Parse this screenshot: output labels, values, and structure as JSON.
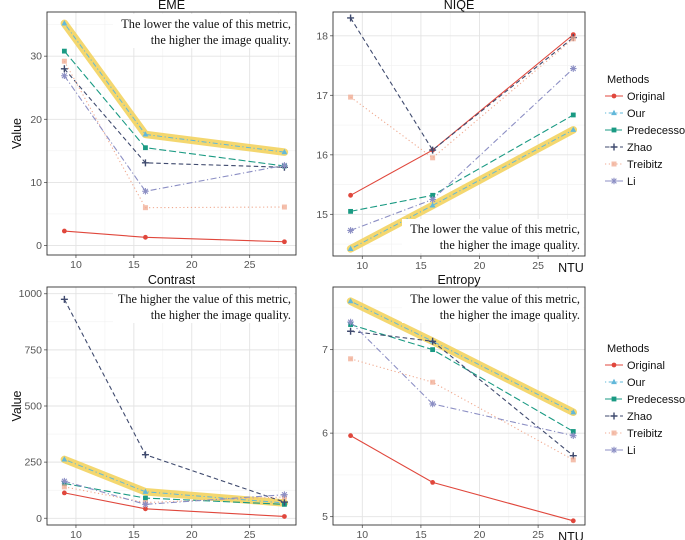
{
  "chart_data": [
    {
      "type": "line",
      "title": "EME",
      "annotation": [
        "The lower the value of this metric,",
        "the higher the image quality."
      ],
      "ylabel": "Value",
      "xlabel": "",
      "x": [
        9,
        16,
        28
      ],
      "xlim": [
        7.5,
        29
      ],
      "ylim": [
        -1.5,
        37
      ],
      "xticks": [
        10,
        15,
        20,
        25
      ],
      "yticks": [
        0,
        10,
        20,
        30
      ],
      "series": [
        {
          "name": "Original",
          "values": [
            2.3,
            1.3,
            0.6
          ]
        },
        {
          "name": "Our",
          "values": [
            35.2,
            17.6,
            14.8
          ]
        },
        {
          "name": "Predecessor",
          "values": [
            30.8,
            15.5,
            12.6
          ]
        },
        {
          "name": "Zhao",
          "values": [
            28.0,
            13.1,
            12.4
          ]
        },
        {
          "name": "Treibitz",
          "values": [
            29.2,
            6.0,
            6.1
          ]
        },
        {
          "name": "Li",
          "values": [
            26.9,
            8.6,
            12.7
          ]
        }
      ]
    },
    {
      "type": "line",
      "title": "NIQE",
      "annotation": [
        "The lower the value of this metric,",
        "the higher the image quality."
      ],
      "ylabel": "",
      "xlabel": "NTU",
      "x": [
        9,
        16,
        28
      ],
      "xlim": [
        7.5,
        29
      ],
      "ylim": [
        14.3,
        18.4
      ],
      "xticks": [
        10,
        15,
        20,
        25
      ],
      "yticks": [
        15,
        16,
        17,
        18
      ],
      "series": [
        {
          "name": "Original",
          "values": [
            15.32,
            16.08,
            18.02
          ]
        },
        {
          "name": "Our",
          "values": [
            14.42,
            15.15,
            16.42
          ]
        },
        {
          "name": "Predecessor",
          "values": [
            15.05,
            15.32,
            16.67
          ]
        },
        {
          "name": "Zhao",
          "values": [
            18.3,
            16.08,
            17.97
          ]
        },
        {
          "name": "Treibitz",
          "values": [
            16.97,
            15.95,
            17.95
          ]
        },
        {
          "name": "Li",
          "values": [
            14.73,
            15.25,
            17.45
          ]
        }
      ]
    },
    {
      "type": "line",
      "title": "Contrast",
      "annotation": [
        "The higher the value of this metric,",
        "the higher the image quality."
      ],
      "ylabel": "Value",
      "xlabel": "",
      "x": [
        9,
        16,
        28
      ],
      "xlim": [
        7.5,
        29
      ],
      "ylim": [
        -30,
        1030
      ],
      "xticks": [
        10,
        15,
        20,
        25
      ],
      "yticks": [
        0,
        250,
        500,
        750,
        1000
      ],
      "series": [
        {
          "name": "Original",
          "values": [
            113,
            42,
            8
          ]
        },
        {
          "name": "Our",
          "values": [
            262,
            118,
            68
          ]
        },
        {
          "name": "Predecessor",
          "values": [
            155,
            90,
            62
          ]
        },
        {
          "name": "Zhao",
          "values": [
            975,
            283,
            72
          ]
        },
        {
          "name": "Treibitz",
          "values": [
            140,
            70,
            95
          ]
        },
        {
          "name": "Li",
          "values": [
            165,
            62,
            105
          ]
        }
      ]
    },
    {
      "type": "line",
      "title": "Entropy",
      "annotation": [
        "The lower the value of this metric,",
        "the higher the image quality."
      ],
      "ylabel": "",
      "xlabel": "NTU",
      "x": [
        9,
        16,
        28
      ],
      "xlim": [
        7.5,
        29
      ],
      "ylim": [
        4.9,
        7.75
      ],
      "xticks": [
        10,
        15,
        20,
        25
      ],
      "yticks": [
        5,
        6,
        7
      ],
      "series": [
        {
          "name": "Original",
          "values": [
            5.97,
            5.41,
            4.95
          ]
        },
        {
          "name": "Our",
          "values": [
            7.58,
            7.1,
            6.25
          ]
        },
        {
          "name": "Predecessor",
          "values": [
            7.3,
            7.0,
            6.02
          ]
        },
        {
          "name": "Zhao",
          "values": [
            7.22,
            7.1,
            5.73
          ]
        },
        {
          "name": "Treibitz",
          "values": [
            6.89,
            6.61,
            5.68
          ]
        },
        {
          "name": "Li",
          "values": [
            7.33,
            6.35,
            5.97
          ]
        }
      ]
    }
  ],
  "legends": [
    {
      "title": "Methods",
      "items": [
        "Original",
        "Our",
        "Predecessor",
        "Zhao",
        "Treibitz",
        "Li"
      ]
    },
    {
      "title": "Methods",
      "items": [
        "Original",
        "Our",
        "Predecessor",
        "Zhao",
        "Treibitz",
        "Li"
      ]
    }
  ],
  "colors": {
    "Original": "#e0473c",
    "Our": "#62b8da",
    "Predecessor": "#1a9a83",
    "Zhao": "#3f4a6e",
    "Treibitz": "#f0aa90",
    "Li": "#8c8fc4",
    "highlight": "#f2d15b",
    "panel_grid_major": "#e3e3e3",
    "panel_grid_minor": "#f1f1f1"
  },
  "line_styles": {
    "Original": "solid",
    "Our": "dotdash",
    "Predecessor": "longdash",
    "Zhao": "dashed",
    "Treibitz": "dotted",
    "Li": "dashdot"
  },
  "markers": {
    "Original": "circle",
    "Our": "triangle",
    "Predecessor": "square",
    "Zhao": "plus",
    "Treibitz": "square-open",
    "Li": "asterisk"
  }
}
